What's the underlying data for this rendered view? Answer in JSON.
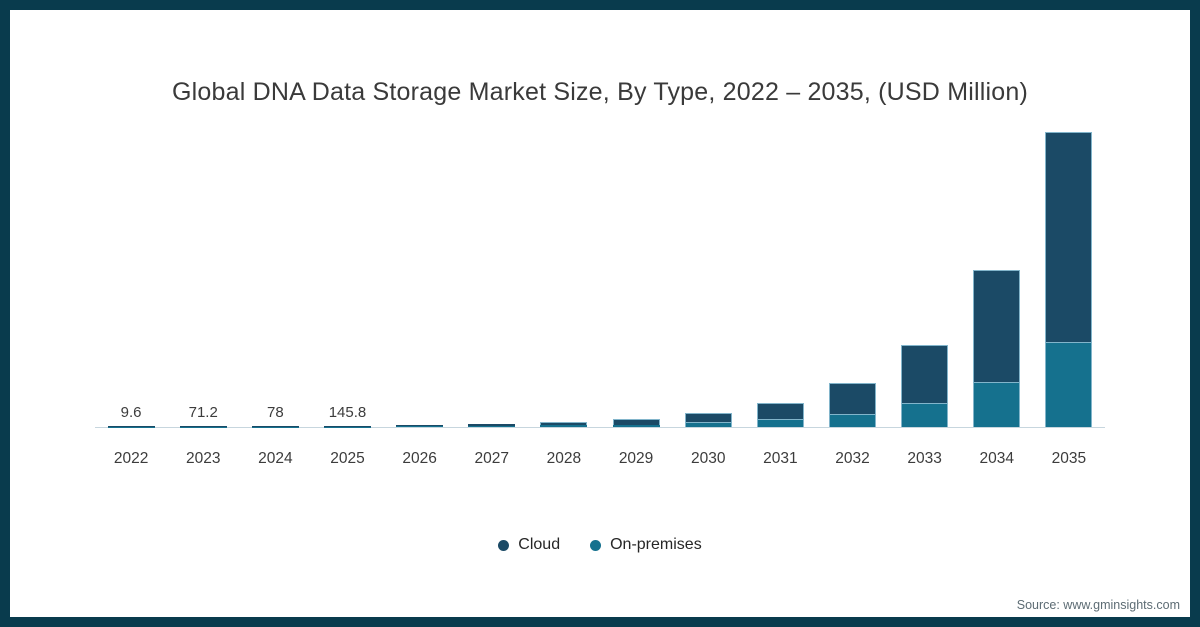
{
  "chart_data": {
    "type": "bar",
    "stacked": true,
    "title": "Global DNA Data Storage Market Size, By Type, 2022 – 2035, (USD Million)",
    "categories": [
      "2022",
      "2023",
      "2024",
      "2025",
      "2026",
      "2027",
      "2028",
      "2029",
      "2030",
      "2031",
      "2032",
      "2033",
      "2034",
      "2035"
    ],
    "series": [
      {
        "name": "Cloud",
        "color": "#1B4A66",
        "values": [
          6.7,
          49.8,
          54.6,
          102.1,
          155,
          270,
          420,
          630,
          1010,
          1790,
          3400,
          6400,
          12400,
          23300
        ]
      },
      {
        "name": "On-premises",
        "color": "#15718E",
        "values": [
          2.9,
          21.4,
          23.4,
          43.7,
          65,
          115,
          180,
          270,
          530,
          870,
          1450,
          2700,
          5000,
          9500
        ]
      }
    ],
    "totals": [
      9.6,
      71.2,
      78,
      145.8,
      220,
      385,
      600,
      900,
      1540,
      2660,
      4850,
      9100,
      17400,
      32800
    ],
    "visible_value_labels": [
      "9.6",
      "71.2",
      "78",
      "145.8",
      null,
      null,
      null,
      null,
      null,
      null,
      null,
      null,
      null,
      null
    ],
    "xlabel": "",
    "ylabel": "",
    "ylim": [
      0,
      34000
    ],
    "grid": false,
    "y_axis_visible": false,
    "legend_position": "bottom"
  },
  "source": {
    "text": "Source: www.gminsights.com"
  },
  "colors": {
    "frame": "#093B4D",
    "cloud": "#1B4A66",
    "on_premises": "#15718E",
    "bar_stroke": "#82B5CB",
    "axis_line": "#C7D6DE",
    "title_text": "#3A3A3A",
    "label_text": "#3C3C3C",
    "source_text": "#5D6C74"
  }
}
